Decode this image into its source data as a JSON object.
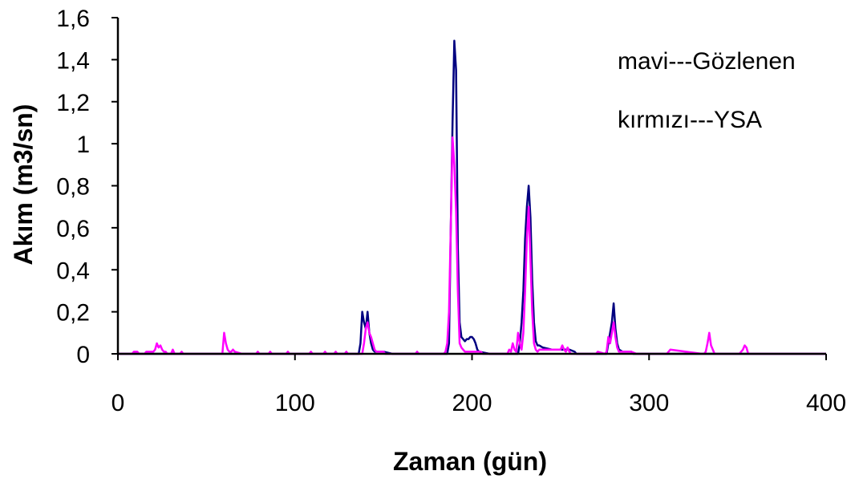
{
  "chart_data": {
    "type": "line",
    "xlabel": "Zaman (gün)",
    "ylabel": "Akım (m3/sn)",
    "xlim": [
      0,
      400
    ],
    "ylim": [
      0,
      1.6
    ],
    "x_ticks": [
      "0",
      "100",
      "200",
      "300",
      "400"
    ],
    "y_ticks": [
      "0",
      "0,2",
      "0,4",
      "0,6",
      "0,8",
      "1",
      "1,2",
      "1,4",
      "1,6"
    ],
    "grid": false,
    "legend_position": "top-right",
    "annotations": [
      "mavi---Gözlenen",
      "kırmızı---YSA"
    ],
    "colors": {
      "observed": "#000080",
      "predicted": "#ff00ff"
    },
    "series": [
      {
        "color": "#000080",
        "x": [
          0,
          136,
          137,
          138,
          139,
          140,
          141,
          142,
          143,
          144,
          145,
          146,
          150,
          155,
          186,
          187,
          188,
          189,
          190,
          191,
          192,
          193,
          194,
          195,
          196,
          197,
          198,
          199,
          200,
          201,
          202,
          203,
          204,
          210,
          226,
          227,
          228,
          229,
          230,
          231,
          232,
          233,
          234,
          235,
          236,
          237,
          238,
          240,
          245,
          250,
          255,
          258,
          259,
          276,
          277,
          278,
          279,
          280,
          281,
          282,
          283,
          285,
          290,
          291,
          400
        ],
        "y": [
          0,
          0,
          0.05,
          0.2,
          0.15,
          0.12,
          0.2,
          0.1,
          0.05,
          0.02,
          0.01,
          0.01,
          0.01,
          0,
          0,
          0.05,
          0.6,
          1.1,
          1.49,
          1.35,
          0.5,
          0.15,
          0.08,
          0.07,
          0.06,
          0.07,
          0.07,
          0.08,
          0.08,
          0.07,
          0.05,
          0.02,
          0.01,
          0,
          0,
          0.05,
          0.15,
          0.3,
          0.55,
          0.7,
          0.8,
          0.65,
          0.35,
          0.15,
          0.06,
          0.04,
          0.04,
          0.03,
          0.02,
          0.02,
          0.02,
          0.01,
          0,
          0,
          0.05,
          0.1,
          0.15,
          0.24,
          0.12,
          0.05,
          0.02,
          0.01,
          0.01,
          0,
          0
        ]
      },
      {
        "color": "#ff00ff",
        "x": [
          0,
          8,
          9,
          10,
          11,
          12,
          15,
          16,
          20,
          21,
          22,
          23,
          24,
          25,
          26,
          27,
          28,
          30,
          31,
          32,
          35,
          36,
          37,
          50,
          59,
          60,
          61,
          62,
          63,
          64,
          65,
          66,
          70,
          78,
          79,
          80,
          85,
          86,
          87,
          95,
          96,
          97,
          108,
          109,
          110,
          116,
          117,
          118,
          122,
          123,
          124,
          128,
          129,
          130,
          138,
          139,
          140,
          141,
          142,
          143,
          144,
          145,
          146,
          147,
          148,
          149,
          150,
          151,
          168,
          169,
          170,
          184,
          185,
          186,
          187,
          188,
          189,
          190,
          191,
          192,
          193,
          194,
          195,
          196,
          197,
          198,
          200,
          205,
          206,
          220,
          221,
          222,
          223,
          224,
          225,
          226,
          227,
          228,
          229,
          230,
          231,
          232,
          233,
          234,
          235,
          236,
          237,
          238,
          240,
          245,
          250,
          251,
          252,
          253,
          254,
          255,
          256,
          265,
          270,
          271,
          275,
          276,
          277,
          278,
          279,
          280,
          281,
          282,
          283,
          285,
          290,
          293,
          310,
          311,
          312,
          330,
          331,
          332,
          333,
          334,
          335,
          336,
          337,
          350,
          351,
          352,
          353,
          354,
          355,
          356,
          400
        ],
        "y": [
          0,
          0,
          0.01,
          0.01,
          0.01,
          0,
          0,
          0.01,
          0.01,
          0.02,
          0.05,
          0.03,
          0.04,
          0.02,
          0.01,
          0.01,
          0,
          0,
          0.02,
          0,
          0,
          0.01,
          0,
          0,
          0,
          0.1,
          0.05,
          0.02,
          0.01,
          0.01,
          0.02,
          0.01,
          0,
          0,
          0.01,
          0,
          0,
          0.01,
          0,
          0,
          0.01,
          0,
          0,
          0.01,
          0,
          0,
          0.01,
          0,
          0,
          0.01,
          0,
          0,
          0.01,
          0,
          0,
          0.05,
          0.12,
          0.15,
          0.1,
          0.08,
          0.05,
          0.02,
          0.01,
          0.01,
          0.01,
          0.01,
          0.01,
          0,
          0,
          0.01,
          0,
          0,
          0.01,
          0.05,
          0.2,
          0.6,
          1.03,
          0.9,
          0.68,
          0.3,
          0.05,
          0.03,
          0.02,
          0.01,
          0.01,
          0.01,
          0.01,
          0.01,
          0,
          0,
          0.02,
          0.01,
          0.05,
          0.02,
          0.01,
          0.1,
          0.05,
          0.02,
          0.1,
          0.3,
          0.55,
          0.7,
          0.45,
          0.2,
          0.05,
          0.02,
          0.01,
          0.02,
          0.02,
          0.02,
          0.02,
          0.04,
          0.02,
          0.01,
          0.03,
          0.01,
          0,
          0,
          0,
          0.01,
          0,
          0.01,
          0.08,
          0.05,
          0.1,
          0.15,
          0.08,
          0.03,
          0.01,
          0.01,
          0.01,
          0,
          0,
          0.01,
          0.02,
          0,
          0,
          0.01,
          0.05,
          0.1,
          0.04,
          0.02,
          0,
          0,
          0,
          0.01,
          0.02,
          0.04,
          0.03,
          0,
          0
        ]
      }
    ]
  }
}
